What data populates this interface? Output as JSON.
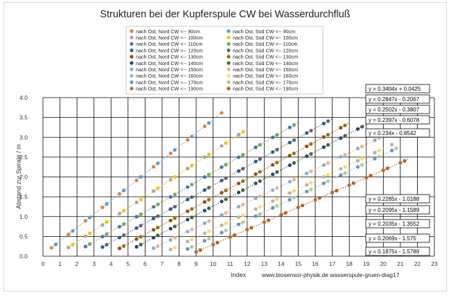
{
  "chart_data": {
    "type": "scatter",
    "title": "Strukturen bei der Kupferspule CW bei Wasserdurchfluß",
    "xlabel": "Index",
    "ylabel": "Abstand zur Spirale / m",
    "footer_note": "www.biosensor-physik.de  wasserspule-gruen-diag17",
    "xlim": [
      0,
      23
    ],
    "ylim": [
      0,
      4
    ],
    "x_ticks": [
      "0",
      "1",
      "2",
      "3",
      "4",
      "5",
      "6",
      "7",
      "8",
      "9",
      "10",
      "11",
      "12",
      "13",
      "14",
      "15",
      "16",
      "17",
      "18",
      "19",
      "20",
      "21",
      "22",
      "23"
    ],
    "y_ticks": [
      "0.0",
      "0.5",
      "1.0",
      "1.5",
      "2.0",
      "2.5",
      "3.0",
      "3.5",
      "4.0"
    ],
    "grid": true,
    "legend_position": "top-center",
    "series": [
      {
        "name": "nach Ost, Nord CW <--  90cm",
        "color": "#ed7d31",
        "slope": 0.3404,
        "intercept": 0.0425,
        "x_start": 0.5,
        "x_end": 10.5,
        "trend_label": ""
      },
      {
        "name": "nach Ost, Nord CW <--  100cm",
        "color": "#a5a5a5",
        "slope": 0.2847,
        "intercept": -0.2067,
        "x_start": 1.5,
        "x_end": 12.0,
        "trend_label": ""
      },
      {
        "name": "nach Ost, Nord CW <--  110cm",
        "color": "#4472c4",
        "slope": 0.2502,
        "intercept": -0.3807,
        "x_start": 2.5,
        "x_end": 15.0,
        "trend_label": ""
      },
      {
        "name": "nach Ost, Nord CW <--  120cm",
        "color": "#255e91",
        "slope": 0.2397,
        "intercept": -0.6078,
        "x_start": 3.5,
        "x_end": 17.0,
        "trend_label": ""
      },
      {
        "name": "nach Ost, Nord CW <--  130cm",
        "color": "#9e480e",
        "slope": 0.234,
        "intercept": -0.8542,
        "x_start": 4.5,
        "x_end": 18.0,
        "trend_label": ""
      },
      {
        "name": "nach Ost, Nord CW <--  140cm",
        "color": "#264478",
        "slope": 0.2285,
        "intercept": -1.0188,
        "x_start": 5.5,
        "x_end": 19.0,
        "trend_label": ""
      },
      {
        "name": "nach Ost, Nord CW <--  150cm",
        "color": "#7cafdd",
        "slope": 0.2095,
        "intercept": -1.1589,
        "x_start": 6.5,
        "x_end": 20.0,
        "trend_label": ""
      },
      {
        "name": "nach Ost, Nord CW <--  160cm",
        "color": "#b4b4b4",
        "slope": 0.2035,
        "intercept": -1.3552,
        "x_start": 7.5,
        "x_end": 20.5,
        "trend_label": ""
      },
      {
        "name": "nach Ost, Nord CW <--  170cm",
        "color": "#698ed0",
        "slope": 0.2069,
        "intercept": -1.575,
        "x_start": 8.5,
        "x_end": 21.0,
        "trend_label": ""
      },
      {
        "name": "nach Ost, Nord CW <--  190cm",
        "color": "#b56a3a",
        "slope": 0.1875,
        "intercept": -1.5789,
        "x_start": 9.0,
        "x_end": 21.5,
        "trend_label": ""
      },
      {
        "name": "nach Ost, Süd CW <--  90cm",
        "color": "#5b9bd5",
        "slope": 0.3404,
        "intercept": 0.0425,
        "x_start": 0.5,
        "x_end": 10.5,
        "trend_label": "y = 0.3404x + 0.0425"
      },
      {
        "name": "nach Ost, Süd CW <--  100cm",
        "color": "#ffc000",
        "slope": 0.2847,
        "intercept": -0.2067,
        "x_start": 1.5,
        "x_end": 12.0,
        "trend_label": "y = 0.2847x - 0.2067"
      },
      {
        "name": "nach Ost, Süd CW <--  110cm",
        "color": "#70ad47",
        "slope": 0.2502,
        "intercept": -0.3807,
        "x_start": 2.5,
        "x_end": 15.0,
        "trend_label": "y = 0.2502x - 0.3807"
      },
      {
        "name": "nach Ost, Süd CW <--  120cm",
        "color": "#636363",
        "slope": 0.2397,
        "intercept": -0.6078,
        "x_start": 3.5,
        "x_end": 17.0,
        "trend_label": "y = 0.2397x - 0.6078"
      },
      {
        "name": "nach Ost, Süd CW <--  130cm",
        "color": "#997300",
        "slope": 0.234,
        "intercept": -0.8542,
        "x_start": 4.5,
        "x_end": 18.0,
        "trend_label": "y = 0.234x - 0.8542"
      },
      {
        "name": "nach Ost, Süd CW <--  140cm",
        "color": "#43682b",
        "slope": 0.2285,
        "intercept": -1.0188,
        "x_start": 5.5,
        "x_end": 19.0,
        "trend_label": "y = 0.2285x - 1.0188"
      },
      {
        "name": "nach Ost, Süd CW <--  150cm",
        "color": "#f4b183",
        "slope": 0.2095,
        "intercept": -1.1589,
        "x_start": 6.5,
        "x_end": 20.0,
        "trend_label": "y = 0.2095x - 1.1589"
      },
      {
        "name": "nach Ost, Süd CW <--  160cm",
        "color": "#ffd966",
        "slope": 0.2035,
        "intercept": -1.3552,
        "x_start": 7.5,
        "x_end": 20.5,
        "trend_label": "y = 0.2035x - 1.3552"
      },
      {
        "name": "nach Ost, Süd CW <--  170cm",
        "color": "#a9d18e",
        "slope": 0.2069,
        "intercept": -1.575,
        "x_start": 8.5,
        "x_end": 21.0,
        "trend_label": "y = 0.2069x - 1.575"
      },
      {
        "name": "nach Ost, Süd CW <--  190cm",
        "color": "#c55a11",
        "slope": 0.1875,
        "intercept": -1.5789,
        "x_start": 9.0,
        "x_end": 21.5,
        "trend_label": "y = 0.1875x - 1.5789"
      }
    ],
    "point_step": 0.5
  }
}
